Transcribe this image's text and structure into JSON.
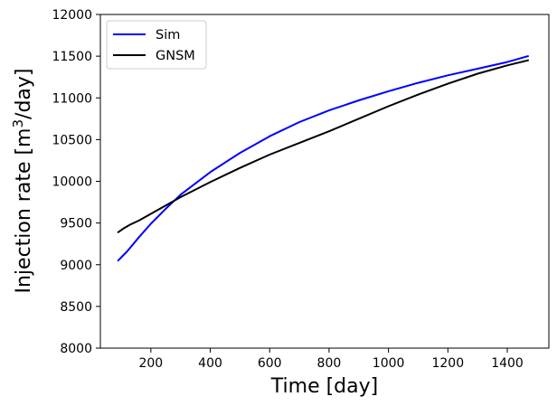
{
  "chart_data": {
    "type": "line",
    "xlabel": "Time [day]",
    "ylabel_main": "Injection rate [m",
    "ylabel_sup": "3",
    "ylabel_tail": "/day]",
    "xlim": [
      30,
      1540
    ],
    "ylim": [
      8000,
      12000
    ],
    "xticks": [
      200,
      400,
      600,
      800,
      1000,
      1200,
      1400
    ],
    "yticks": [
      8000,
      8500,
      9000,
      9500,
      10000,
      10500,
      11000,
      11500,
      12000
    ],
    "xtick_labels": [
      "200",
      "400",
      "600",
      "800",
      "1000",
      "1200",
      "1400"
    ],
    "ytick_labels": [
      "8000",
      "8500",
      "9000",
      "9500",
      "10000",
      "10500",
      "11000",
      "11500",
      "12000"
    ],
    "grid": false,
    "legend_position": "top-left",
    "series": [
      {
        "name": "Sim",
        "color": "#0000ff",
        "x": [
          90,
          120,
          160,
          200,
          250,
          300,
          400,
          500,
          600,
          700,
          800,
          900,
          1000,
          1100,
          1200,
          1300,
          1400,
          1470
        ],
        "y": [
          9050,
          9160,
          9330,
          9490,
          9670,
          9840,
          10110,
          10340,
          10540,
          10710,
          10850,
          10970,
          11080,
          11180,
          11270,
          11350,
          11430,
          11500
        ]
      },
      {
        "name": "GNSM",
        "color": "#000000",
        "x": [
          90,
          110,
          130,
          160,
          200,
          250,
          300,
          400,
          500,
          600,
          700,
          800,
          900,
          1000,
          1100,
          1200,
          1300,
          1400,
          1470
        ],
        "y": [
          9390,
          9440,
          9480,
          9530,
          9610,
          9710,
          9810,
          9990,
          10160,
          10320,
          10460,
          10600,
          10750,
          10900,
          11040,
          11170,
          11290,
          11390,
          11450
        ]
      }
    ]
  }
}
